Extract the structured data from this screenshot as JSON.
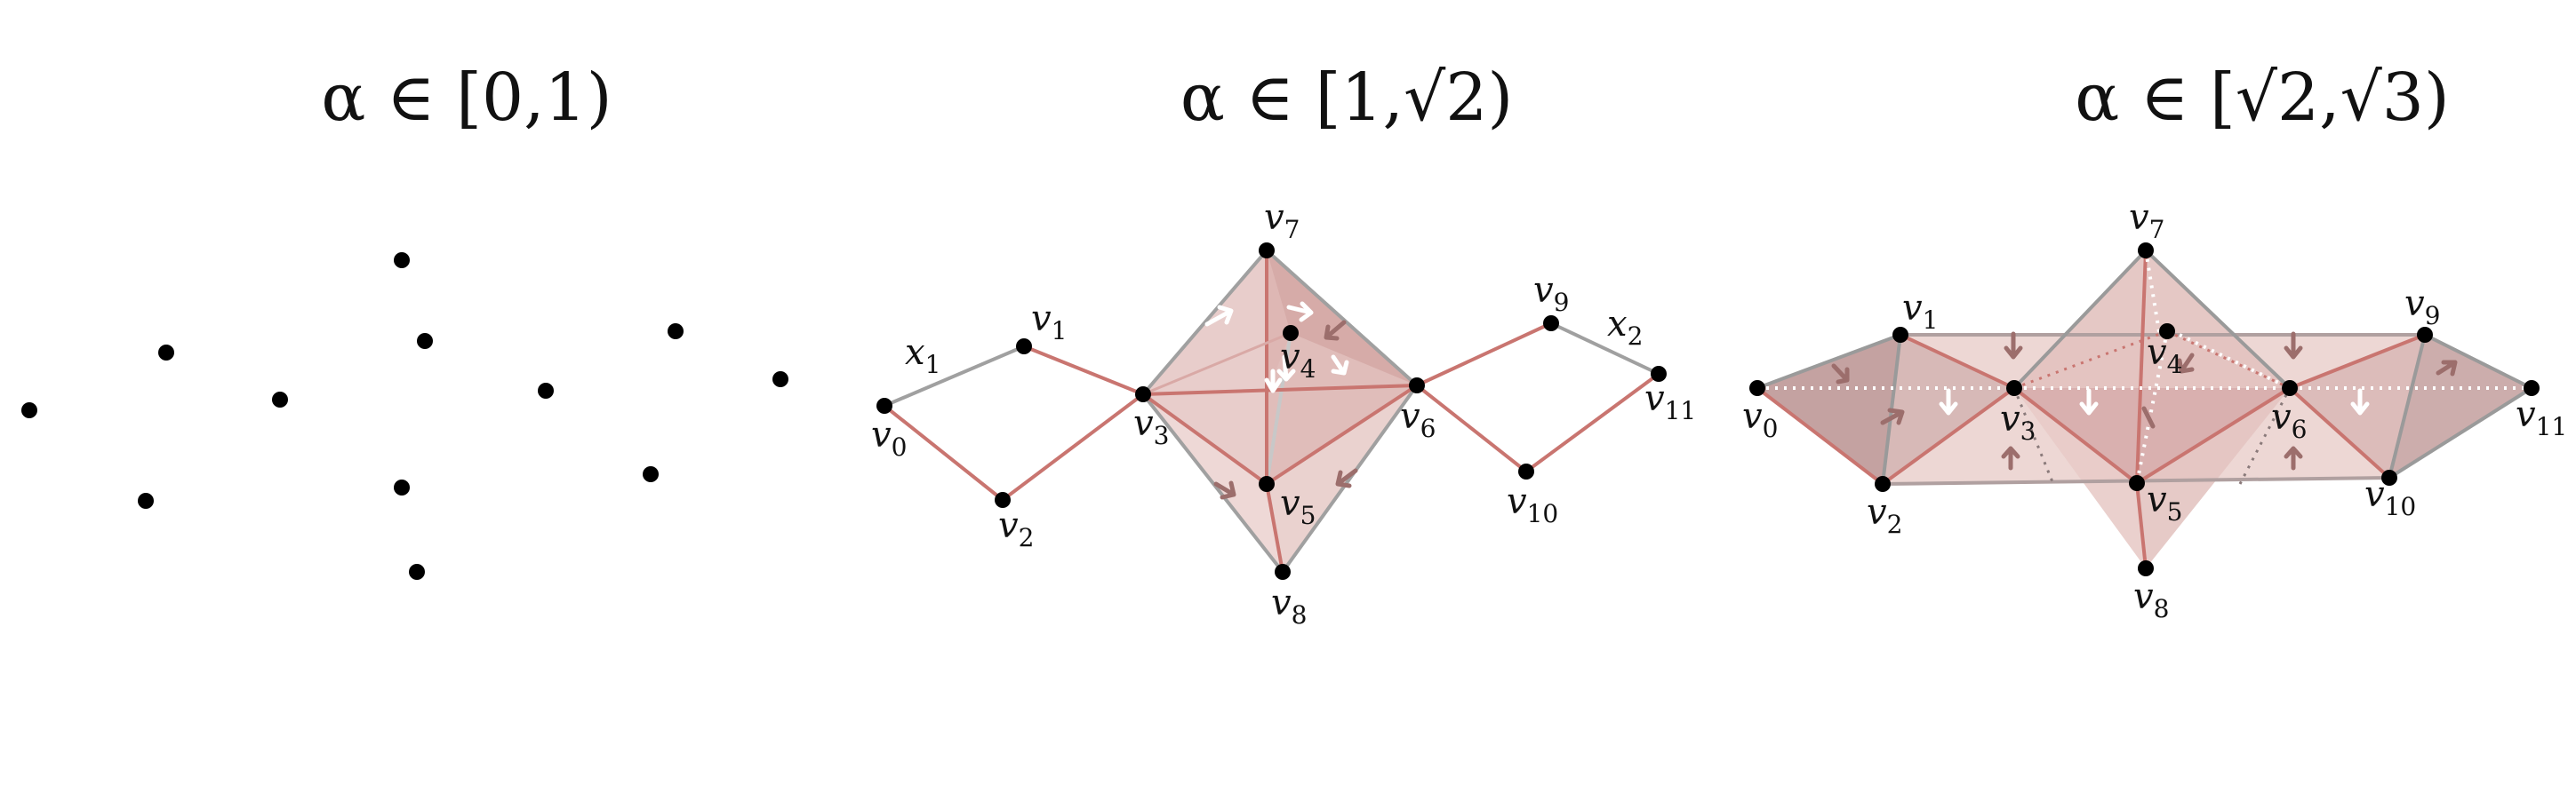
{
  "panels": [
    {
      "title": "α ∈ [0,1)"
    },
    {
      "title": "α ∈ [1,√2)"
    },
    {
      "title": "α ∈ [√2,√3)"
    }
  ],
  "labels": {
    "x1": {
      "base": "x",
      "sub": "1"
    },
    "x2": {
      "base": "x",
      "sub": "2"
    },
    "v0": {
      "base": "v",
      "sub": "0"
    },
    "v1": {
      "base": "v",
      "sub": "1"
    },
    "v2": {
      "base": "v",
      "sub": "2"
    },
    "v3": {
      "base": "v",
      "sub": "3"
    },
    "v4": {
      "base": "v",
      "sub": "4"
    },
    "v5": {
      "base": "v",
      "sub": "5"
    },
    "v6": {
      "base": "v",
      "sub": "6"
    },
    "v7": {
      "base": "v",
      "sub": "7"
    },
    "v8": {
      "base": "v",
      "sub": "8"
    },
    "v9": {
      "base": "v",
      "sub": "9"
    },
    "v10": {
      "base": "v",
      "sub": "10"
    },
    "v11": {
      "base": "v",
      "sub": "11"
    }
  },
  "colors": {
    "point": "#000000",
    "edge_red": "#c97570",
    "edge_gray": "#a0a0a0",
    "fill_light": "#eed5d2",
    "fill_mid": "#dcaeab",
    "fill_dark": "#b99898",
    "arrow_dark": "#9c6e6c",
    "arrow_white": "#ffffff"
  }
}
